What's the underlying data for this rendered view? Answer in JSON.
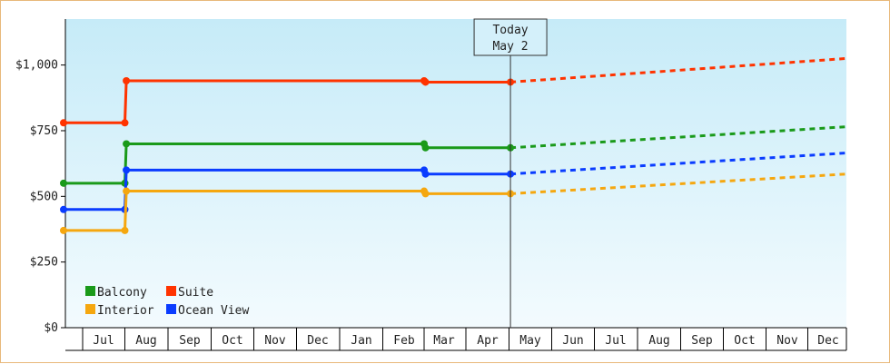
{
  "chart_data": {
    "type": "line",
    "y_axis": {
      "min": 0,
      "max": 1175,
      "ticks": [
        0,
        250,
        500,
        750,
        1000
      ],
      "tick_labels": [
        "$0",
        "$250",
        "$500",
        "$750",
        "$1,000"
      ]
    },
    "x_axis": {
      "months": [
        "Jul",
        "Aug",
        "Sep",
        "Oct",
        "Nov",
        "Dec",
        "Jan",
        "Feb",
        "Mar",
        "Apr",
        "May",
        "Jun",
        "Jul",
        "Aug",
        "Sep",
        "Oct",
        "Nov",
        "Dec"
      ]
    },
    "today": {
      "line1": "Today",
      "line2": "May 2",
      "date": "May 2"
    },
    "colors": {
      "Balcony": "#1a9a1a",
      "Suite": "#ff3300",
      "Interior": "#f5a70f",
      "Ocean View": "#0a3cff"
    },
    "series": [
      {
        "name": "Suite",
        "points": [
          [
            "Jul 1",
            780
          ],
          [
            "Aug 1",
            780
          ],
          [
            "Aug 2",
            940
          ],
          [
            "Mar 1",
            940
          ],
          [
            "Mar 2",
            935
          ],
          [
            "May 2",
            935
          ]
        ],
        "forecast": [
          [
            "May 2",
            935
          ],
          [
            "Dec 31",
            1025
          ]
        ]
      },
      {
        "name": "Balcony",
        "points": [
          [
            "Jul 1",
            550
          ],
          [
            "Aug 1",
            550
          ],
          [
            "Aug 2",
            700
          ],
          [
            "Mar 1",
            700
          ],
          [
            "Mar 2",
            685
          ],
          [
            "May 2",
            685
          ]
        ],
        "forecast": [
          [
            "May 2",
            685
          ],
          [
            "Dec 31",
            765
          ]
        ]
      },
      {
        "name": "Ocean View",
        "points": [
          [
            "Jul 1",
            450
          ],
          [
            "Aug 1",
            450
          ],
          [
            "Aug 2",
            600
          ],
          [
            "Mar 1",
            600
          ],
          [
            "Mar 2",
            585
          ],
          [
            "May 2",
            585
          ]
        ],
        "forecast": [
          [
            "May 2",
            585
          ],
          [
            "Dec 31",
            665
          ]
        ]
      },
      {
        "name": "Interior",
        "points": [
          [
            "Jul 1",
            370
          ],
          [
            "Aug 1",
            370
          ],
          [
            "Aug 2",
            520
          ],
          [
            "Mar 1",
            520
          ],
          [
            "Mar 2",
            510
          ],
          [
            "May 2",
            510
          ]
        ],
        "forecast": [
          [
            "May 2",
            510
          ],
          [
            "Dec 31",
            585
          ]
        ]
      }
    ],
    "legend": [
      {
        "label": "Balcony",
        "color": "#1a9a1a"
      },
      {
        "label": "Suite",
        "color": "#ff3300"
      },
      {
        "label": "Interior",
        "color": "#f5a70f"
      },
      {
        "label": "Ocean View",
        "color": "#0a3cff"
      }
    ],
    "legend_position": "bottom-left",
    "grid": false
  }
}
